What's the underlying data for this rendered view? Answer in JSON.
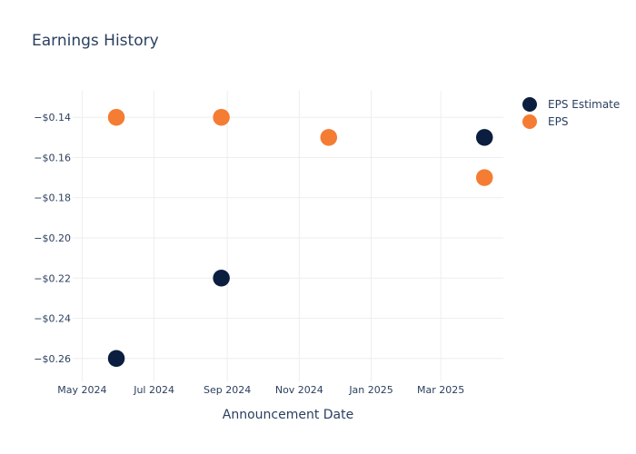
{
  "chart_data": {
    "type": "scatter",
    "title": "Earnings History",
    "xlabel": "Announcement Date",
    "ylabel": "",
    "x_ticks": [
      {
        "date": "2024-05-01",
        "label": "May 2024"
      },
      {
        "date": "2024-07-01",
        "label": "Jul 2024"
      },
      {
        "date": "2024-09-01",
        "label": "Sep 2024"
      },
      {
        "date": "2024-11-01",
        "label": "Nov 2024"
      },
      {
        "date": "2025-01-01",
        "label": "Jan 2025"
      },
      {
        "date": "2025-03-01",
        "label": "Mar 2025"
      }
    ],
    "xlim": [
      "2024-04-23",
      "2025-04-23"
    ],
    "y_ticks": [
      {
        "value": -0.14,
        "label": "−$0.14"
      },
      {
        "value": -0.16,
        "label": "−$0.16"
      },
      {
        "value": -0.18,
        "label": "−$0.18"
      },
      {
        "value": -0.2,
        "label": "−$0.20"
      },
      {
        "value": -0.22,
        "label": "−$0.22"
      },
      {
        "value": -0.24,
        "label": "−$0.24"
      },
      {
        "value": -0.26,
        "label": "−$0.26"
      }
    ],
    "ylim": [
      -0.2714,
      -0.1268
    ],
    "grid": true,
    "legend_position": "top-right",
    "series": [
      {
        "name": "EPS Estimate",
        "color": "#0b1e3f",
        "points": [
          {
            "x": "2024-05-30",
            "y": -0.26
          },
          {
            "x": "2024-08-27",
            "y": -0.22
          },
          {
            "x": "2024-11-26",
            "y": -0.15
          },
          {
            "x": "2025-04-07",
            "y": -0.15
          }
        ]
      },
      {
        "name": "EPS",
        "color": "#f47d33",
        "points": [
          {
            "x": "2024-05-30",
            "y": -0.14
          },
          {
            "x": "2024-08-27",
            "y": -0.14
          },
          {
            "x": "2024-11-26",
            "y": -0.15
          },
          {
            "x": "2025-04-07",
            "y": -0.17
          }
        ]
      }
    ]
  }
}
